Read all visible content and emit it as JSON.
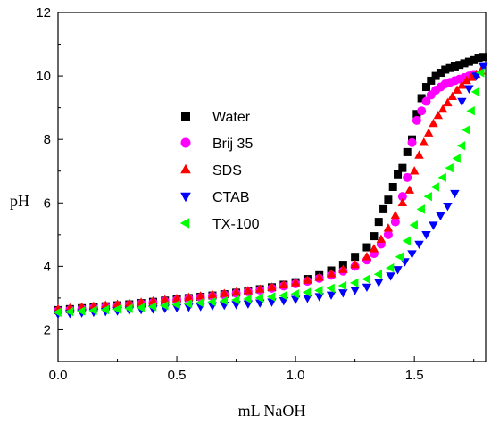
{
  "chart_data": {
    "type": "scatter",
    "title": "",
    "xlabel": "mL NaOH",
    "ylabel": "pH",
    "xlim": [
      0.0,
      1.8
    ],
    "ylim": [
      1.0,
      12.0
    ],
    "xticks": [
      0.0,
      0.5,
      1.0,
      1.5
    ],
    "xtick_labels": [
      "0.0",
      "0.5",
      "1.0",
      "1.5"
    ],
    "yticks": [
      2,
      4,
      6,
      8,
      10,
      12
    ],
    "ytick_labels": [
      "2",
      "4",
      "6",
      "8",
      "10",
      "12"
    ],
    "grid": false,
    "legend_position": "center-left",
    "series": [
      {
        "name": "Water",
        "marker": "square",
        "color": "#000000",
        "x": [
          0.0,
          0.05,
          0.1,
          0.15,
          0.2,
          0.25,
          0.3,
          0.35,
          0.4,
          0.45,
          0.5,
          0.55,
          0.6,
          0.65,
          0.7,
          0.75,
          0.8,
          0.85,
          0.9,
          0.95,
          1.0,
          1.05,
          1.1,
          1.15,
          1.2,
          1.25,
          1.3,
          1.33,
          1.35,
          1.37,
          1.39,
          1.41,
          1.43,
          1.45,
          1.47,
          1.49,
          1.51,
          1.53,
          1.55,
          1.57,
          1.59,
          1.61,
          1.63,
          1.65,
          1.67,
          1.69,
          1.71,
          1.73,
          1.75,
          1.77,
          1.79
        ],
        "y": [
          2.62,
          2.65,
          2.68,
          2.71,
          2.74,
          2.77,
          2.8,
          2.84,
          2.88,
          2.92,
          2.96,
          3.0,
          3.04,
          3.08,
          3.12,
          3.17,
          3.22,
          3.28,
          3.34,
          3.42,
          3.5,
          3.6,
          3.72,
          3.87,
          4.05,
          4.3,
          4.6,
          4.95,
          5.4,
          5.8,
          6.1,
          6.5,
          6.9,
          7.1,
          7.6,
          8.0,
          8.8,
          9.3,
          9.65,
          9.85,
          10.0,
          10.1,
          10.2,
          10.25,
          10.3,
          10.35,
          10.4,
          10.45,
          10.5,
          10.55,
          10.6
        ]
      },
      {
        "name": "Brij 35",
        "marker": "circle",
        "color": "#ff00ff",
        "x": [
          0.0,
          0.05,
          0.1,
          0.15,
          0.2,
          0.25,
          0.3,
          0.35,
          0.4,
          0.45,
          0.5,
          0.55,
          0.6,
          0.65,
          0.7,
          0.75,
          0.8,
          0.85,
          0.9,
          0.95,
          1.0,
          1.05,
          1.1,
          1.15,
          1.2,
          1.25,
          1.3,
          1.33,
          1.36,
          1.39,
          1.42,
          1.45,
          1.47,
          1.49,
          1.51,
          1.53,
          1.55,
          1.57,
          1.59,
          1.61,
          1.63,
          1.65,
          1.67,
          1.69,
          1.71,
          1.73,
          1.75
        ],
        "y": [
          2.6,
          2.63,
          2.66,
          2.69,
          2.72,
          2.75,
          2.78,
          2.82,
          2.86,
          2.9,
          2.94,
          2.98,
          3.02,
          3.06,
          3.1,
          3.15,
          3.2,
          3.25,
          3.31,
          3.38,
          3.45,
          3.53,
          3.62,
          3.72,
          3.85,
          4.0,
          4.2,
          4.4,
          4.7,
          5.0,
          5.4,
          6.2,
          6.8,
          7.9,
          8.6,
          8.9,
          9.2,
          9.4,
          9.55,
          9.65,
          9.75,
          9.8,
          9.85,
          9.9,
          9.95,
          10.0,
          10.05
        ]
      },
      {
        "name": "SDS",
        "marker": "triangle-up",
        "color": "#ff0000",
        "x": [
          0.0,
          0.05,
          0.1,
          0.15,
          0.2,
          0.25,
          0.3,
          0.35,
          0.4,
          0.45,
          0.5,
          0.55,
          0.6,
          0.65,
          0.7,
          0.75,
          0.8,
          0.85,
          0.9,
          0.95,
          1.0,
          1.05,
          1.1,
          1.15,
          1.2,
          1.25,
          1.3,
          1.33,
          1.36,
          1.39,
          1.42,
          1.45,
          1.48,
          1.5,
          1.52,
          1.54,
          1.56,
          1.58,
          1.6,
          1.62,
          1.64,
          1.66,
          1.68,
          1.7,
          1.72,
          1.74,
          1.76,
          1.78
        ],
        "y": [
          2.65,
          2.68,
          2.71,
          2.74,
          2.77,
          2.8,
          2.83,
          2.86,
          2.9,
          2.94,
          2.98,
          3.02,
          3.06,
          3.1,
          3.14,
          3.18,
          3.23,
          3.28,
          3.34,
          3.41,
          3.48,
          3.56,
          3.65,
          3.76,
          3.9,
          4.05,
          4.3,
          4.55,
          4.85,
          5.2,
          5.6,
          6.0,
          6.4,
          7.0,
          7.5,
          7.9,
          8.2,
          8.5,
          8.75,
          8.95,
          9.15,
          9.35,
          9.55,
          9.7,
          9.85,
          9.95,
          10.05,
          10.15
        ]
      },
      {
        "name": "CTAB",
        "marker": "triangle-down",
        "color": "#0000ff",
        "x": [
          0.0,
          0.05,
          0.1,
          0.15,
          0.2,
          0.25,
          0.3,
          0.35,
          0.4,
          0.45,
          0.5,
          0.55,
          0.6,
          0.65,
          0.7,
          0.75,
          0.8,
          0.85,
          0.9,
          0.95,
          1.0,
          1.05,
          1.1,
          1.15,
          1.2,
          1.25,
          1.3,
          1.35,
          1.4,
          1.43,
          1.46,
          1.49,
          1.52,
          1.55,
          1.58,
          1.61,
          1.64,
          1.67,
          1.7,
          1.73,
          1.76,
          1.79
        ],
        "y": [
          2.5,
          2.52,
          2.54,
          2.56,
          2.58,
          2.6,
          2.62,
          2.64,
          2.66,
          2.68,
          2.7,
          2.72,
          2.74,
          2.76,
          2.78,
          2.8,
          2.82,
          2.85,
          2.88,
          2.92,
          2.96,
          3.0,
          3.05,
          3.1,
          3.17,
          3.25,
          3.35,
          3.5,
          3.7,
          3.9,
          4.15,
          4.4,
          4.7,
          5.0,
          5.3,
          5.6,
          5.9,
          6.3,
          9.2,
          9.6,
          10.0,
          10.3
        ]
      },
      {
        "name": "TX-100",
        "marker": "triangle-left",
        "color": "#00ff00",
        "x": [
          0.0,
          0.05,
          0.1,
          0.15,
          0.2,
          0.25,
          0.3,
          0.35,
          0.4,
          0.45,
          0.5,
          0.55,
          0.6,
          0.65,
          0.7,
          0.75,
          0.8,
          0.85,
          0.9,
          0.95,
          1.0,
          1.05,
          1.1,
          1.15,
          1.2,
          1.25,
          1.3,
          1.35,
          1.4,
          1.44,
          1.47,
          1.5,
          1.53,
          1.56,
          1.59,
          1.62,
          1.65,
          1.68,
          1.7,
          1.72,
          1.74,
          1.76,
          1.78
        ],
        "y": [
          2.55,
          2.57,
          2.59,
          2.61,
          2.63,
          2.65,
          2.67,
          2.7,
          2.73,
          2.76,
          2.79,
          2.82,
          2.85,
          2.88,
          2.91,
          2.94,
          2.97,
          3.0,
          3.04,
          3.08,
          3.13,
          3.18,
          3.24,
          3.31,
          3.39,
          3.48,
          3.6,
          3.75,
          3.95,
          4.3,
          4.8,
          5.3,
          5.8,
          6.2,
          6.5,
          6.8,
          7.1,
          7.4,
          7.8,
          8.3,
          8.9,
          9.5,
          10.1
        ]
      }
    ]
  }
}
